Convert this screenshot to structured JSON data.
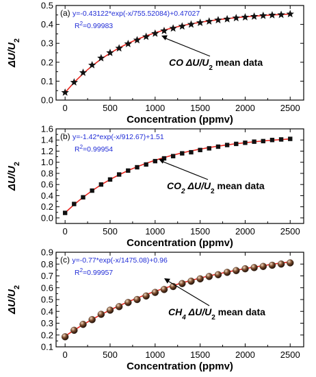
{
  "chart_data": [
    {
      "type": "scatter",
      "panel": "(a)",
      "marker": "star",
      "fit_equation": "y=-0.43122*exp(-x/755.52084)+0.47027",
      "r2_base": "R",
      "r2_sup": "2",
      "r2_value": "=0.99983",
      "annotation": {
        "gas": "CO",
        "gas_sub": "",
        "sym": " ΔU/U",
        "sym_sub": "2",
        "rest": " mean data"
      },
      "xlabel": "Concentration (ppmv)",
      "ylabel_parts": [
        "ΔU/U",
        "2"
      ],
      "xlim": [
        -100,
        2650
      ],
      "ylim": [
        0,
        0.5
      ],
      "xticks": [
        0,
        500,
        1000,
        1500,
        2000,
        2500
      ],
      "yticks": [
        0.0,
        0.1,
        0.2,
        0.3,
        0.4,
        0.5
      ],
      "ytick_labels": [
        "0.0",
        "0.1",
        "0.2",
        "0.3",
        "0.4",
        "0.5"
      ],
      "fit": {
        "a": 0.43122,
        "t": 755.52084,
        "c": 0.47027
      },
      "x": [
        0,
        100,
        200,
        300,
        400,
        500,
        600,
        700,
        800,
        900,
        1000,
        1100,
        1200,
        1300,
        1400,
        1500,
        1600,
        1700,
        1800,
        1900,
        2000,
        2100,
        2200,
        2300,
        2400,
        2500
      ],
      "y": [
        0.04,
        0.094,
        0.145,
        0.185,
        0.222,
        0.25,
        0.274,
        0.297,
        0.317,
        0.335,
        0.352,
        0.366,
        0.379,
        0.39,
        0.4,
        0.409,
        0.416,
        0.423,
        0.428,
        0.434,
        0.438,
        0.442,
        0.446,
        0.449,
        0.451,
        0.455
      ],
      "series_color": "#e8261e",
      "marker_color": "#111111"
    },
    {
      "type": "scatter",
      "panel": "(b)",
      "marker": "square",
      "fit_equation": "y=-1.42*exp(-x/912.67)+1.51",
      "r2_base": "R",
      "r2_sup": "2",
      "r2_value": "=0.99954",
      "annotation": {
        "gas": "CO",
        "gas_sub": "2",
        "sym": " ΔU/U",
        "sym_sub": "2",
        "rest": " mean data"
      },
      "xlabel": "Concentration (ppmv)",
      "ylabel_parts": [
        "ΔU/U",
        "2"
      ],
      "xlim": [
        -100,
        2650
      ],
      "ylim": [
        -0.1,
        1.6
      ],
      "xticks": [
        0,
        500,
        1000,
        1500,
        2000,
        2500
      ],
      "yticks": [
        0.0,
        0.2,
        0.4,
        0.6,
        0.8,
        1.0,
        1.2,
        1.4,
        1.6
      ],
      "ytick_labels": [
        "0.0",
        "0.2",
        "0.4",
        "0.6",
        "0.8",
        "1.0",
        "1.2",
        "1.4",
        "1.6"
      ],
      "fit": {
        "a": 1.42,
        "t": 912.67,
        "c": 1.51
      },
      "x": [
        0,
        100,
        200,
        300,
        400,
        500,
        600,
        700,
        800,
        900,
        1000,
        1100,
        1200,
        1300,
        1400,
        1500,
        1600,
        1700,
        1800,
        1900,
        2000,
        2100,
        2200,
        2300,
        2400,
        2500
      ],
      "y": [
        0.09,
        0.25,
        0.37,
        0.49,
        0.6,
        0.69,
        0.78,
        0.85,
        0.91,
        0.96,
        1.02,
        1.07,
        1.11,
        1.16,
        1.18,
        1.22,
        1.25,
        1.28,
        1.31,
        1.33,
        1.35,
        1.37,
        1.38,
        1.4,
        1.41,
        1.42
      ],
      "series_color": "#e8261e",
      "marker_color": "#111111"
    },
    {
      "type": "scatter",
      "panel": "(c)",
      "marker": "sphere",
      "fit_equation": "y=-0.77*exp(-x/1475.08)+0.96",
      "r2_base": "R",
      "r2_sup": "2",
      "r2_value": "=0.99957",
      "annotation": {
        "gas": "CH",
        "gas_sub": "4",
        "sym": " ΔU/U",
        "sym_sub": "2",
        "rest": " mean data"
      },
      "xlabel": "Concentration (ppmv)",
      "ylabel_parts": [
        "ΔU/U",
        "2"
      ],
      "xlim": [
        -100,
        2650
      ],
      "ylim": [
        0.1,
        0.9
      ],
      "xticks": [
        0,
        500,
        1000,
        1500,
        2000,
        2500
      ],
      "yticks": [
        0.1,
        0.2,
        0.3,
        0.4,
        0.5,
        0.6,
        0.7,
        0.8,
        0.9
      ],
      "ytick_labels": [
        "0.1",
        "0.2",
        "0.3",
        "0.4",
        "0.5",
        "0.6",
        "0.7",
        "0.8",
        "0.9"
      ],
      "fit": {
        "a": 0.77,
        "t": 1475.08,
        "c": 0.96
      },
      "x": [
        0,
        100,
        200,
        300,
        400,
        500,
        600,
        700,
        800,
        900,
        1000,
        1100,
        1200,
        1300,
        1400,
        1500,
        1600,
        1700,
        1800,
        1900,
        2000,
        2100,
        2200,
        2300,
        2400,
        2500
      ],
      "y": [
        0.185,
        0.24,
        0.29,
        0.33,
        0.375,
        0.41,
        0.44,
        0.475,
        0.5,
        0.53,
        0.56,
        0.585,
        0.61,
        0.635,
        0.655,
        0.675,
        0.695,
        0.71,
        0.73,
        0.745,
        0.76,
        0.77,
        0.78,
        0.79,
        0.8,
        0.81
      ],
      "series_color": "#e8261e",
      "marker_color": "#3a2418"
    }
  ]
}
